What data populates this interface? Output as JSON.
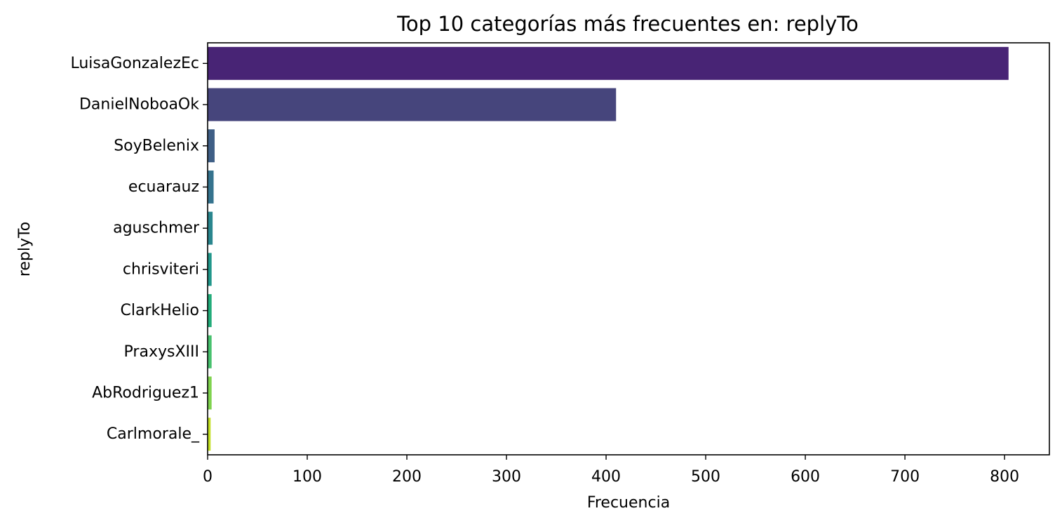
{
  "chart_data": {
    "type": "bar",
    "orientation": "horizontal",
    "title": "Top 10 categorías más frecuentes en: replyTo",
    "xlabel": "Frecuencia",
    "ylabel": "replyTo",
    "categories": [
      "LuisaGonzalezEc",
      "DanielNoboaOk",
      "SoyBelenix",
      "ecuarauz",
      "aguschmer",
      "chrisviteri",
      "ClarkHelio",
      "PraxysXIII",
      "AbRodriguez1",
      "Carlmorale_"
    ],
    "values": [
      804,
      410,
      7,
      6,
      5,
      4,
      4,
      4,
      4,
      3
    ],
    "colors": [
      "#482475",
      "#46457c",
      "#3f5f86",
      "#35738e",
      "#2a868e",
      "#21978b",
      "#22ac7a",
      "#47c16e",
      "#7fd34e",
      "#c2df23"
    ],
    "xlim": [
      0,
      845
    ],
    "xticks": [
      0,
      100,
      200,
      300,
      400,
      500,
      600,
      700,
      800
    ],
    "grid": false,
    "legend": "none"
  }
}
